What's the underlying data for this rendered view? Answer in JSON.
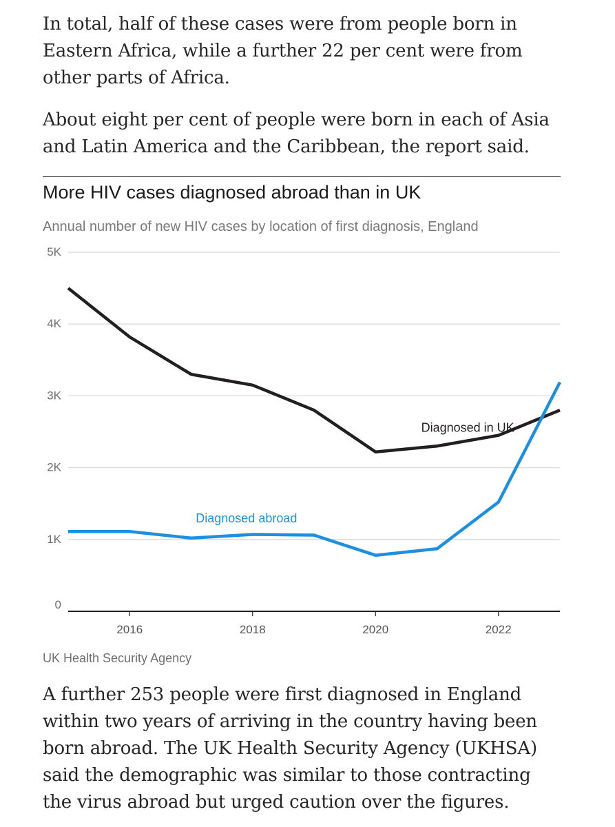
{
  "article": {
    "para1": "In total, half of these cases were from people born in Eastern Africa, while a further 22 per cent were from other parts of Africa.",
    "para2": "About eight per cent of people were born in each of Asia and Latin America and the Caribbean, the report said.",
    "para3": "A further 253 people were first diagnosed in England within two years of arriving in the country having been born abroad. The UK Health Security Agency (UKHSA) said the demographic was similar to those contracting the virus abroad but urged caution over the figures."
  },
  "chart_data": {
    "type": "line",
    "title": "More HIV cases diagnosed abroad than in UK",
    "subtitle": "Annual number of new HIV cases by location of first diagnosis, England",
    "source": "UK Health Security Agency",
    "x": [
      2015,
      2016,
      2017,
      2018,
      2019,
      2020,
      2021,
      2022,
      2023
    ],
    "xlim": [
      2015,
      2023
    ],
    "ylim": [
      0,
      5000
    ],
    "x_ticks": [
      {
        "value": 2016,
        "label": "2016"
      },
      {
        "value": 2018,
        "label": "2018"
      },
      {
        "value": 2020,
        "label": "2020"
      },
      {
        "value": 2022,
        "label": "2022"
      }
    ],
    "y_ticks": [
      {
        "value": 0,
        "label": "0"
      },
      {
        "value": 1000,
        "label": "1K"
      },
      {
        "value": 2000,
        "label": "2K"
      },
      {
        "value": 3000,
        "label": "3K"
      },
      {
        "value": 4000,
        "label": "4K"
      },
      {
        "value": 5000,
        "label": "5K"
      }
    ],
    "grid": true,
    "legend": "inline labels",
    "series": [
      {
        "name": "Diagnosed in UK",
        "color": "#231f20",
        "values": [
          4500,
          3820,
          3300,
          3150,
          2800,
          2220,
          2300,
          2450,
          2800
        ],
        "label_at": [
          2021.5,
          2500
        ]
      },
      {
        "name": "Diagnosed abroad",
        "color": "#1d8fe1",
        "values": [
          1110,
          1110,
          1020,
          1070,
          1060,
          780,
          870,
          1520,
          3190
        ],
        "label_at": [
          2017.9,
          1240
        ]
      }
    ]
  }
}
